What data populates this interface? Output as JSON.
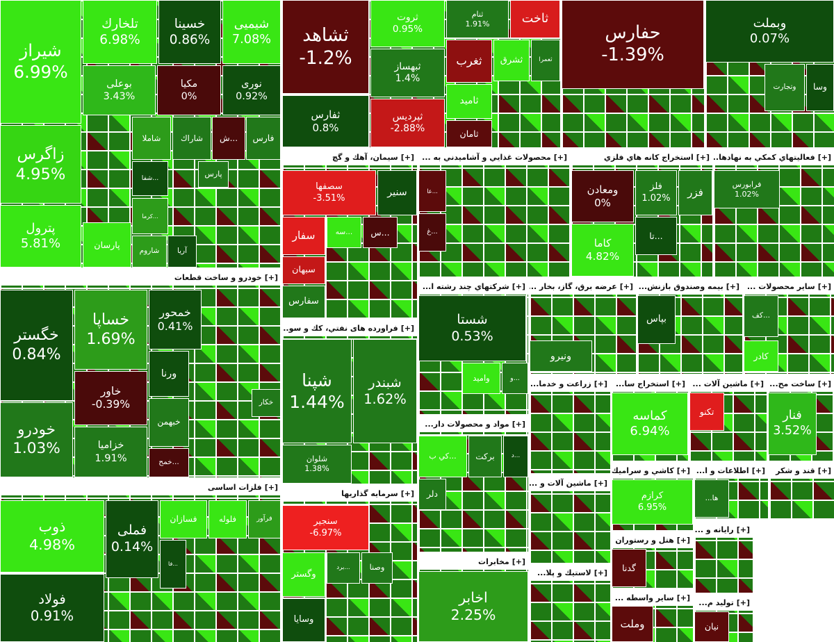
{
  "sectors": [
    {
      "tiles": [
        {
          "label": "شیراز",
          "value": "6.99%",
          "color": "#39e614"
        },
        {
          "label": "زاگرس",
          "value": "4.95%",
          "color": "#36d613"
        },
        {
          "label": "پترول",
          "value": "5.81%",
          "color": "#39e614"
        },
        {
          "label": "تلخارك",
          "value": "6.98%",
          "color": "#39e614"
        },
        {
          "label": "خسینا",
          "value": "0.86%",
          "color": "#0f4d0d"
        },
        {
          "label": "شیمیی",
          "value": "7.08%",
          "color": "#39e614"
        },
        {
          "label": "بوعلی",
          "value": "3.43%",
          "color": "#2fb81a"
        },
        {
          "label": "مکیا",
          "value": "0%",
          "color": "#4a0a0a"
        },
        {
          "label": "نوری",
          "value": "0.92%",
          "color": "#0f4d0d"
        },
        {
          "label": "شاملا",
          "color": "#2d9c1a"
        },
        {
          "label": "شاراك",
          "color": "#21781a"
        },
        {
          "label": "ش...",
          "color": "#4a0a0a"
        },
        {
          "label": "فارس",
          "color": "#21781a"
        },
        {
          "label": "شفا...",
          "color": "#0f4d0d"
        },
        {
          "label": "پارس",
          "color": "#21781a"
        },
        {
          "label": "كرما...",
          "color": "#2d9c1a"
        },
        {
          "label": "پارسان",
          "color": "#39e614"
        },
        {
          "label": "شاروم",
          "color": "#2d9c1a"
        },
        {
          "label": "آریا",
          "color": "#0f4d0d"
        }
      ]
    },
    {
      "title": "خودرو و ساخت قطعات",
      "toggle": "[+]",
      "tiles": [
        {
          "label": "خگستر",
          "value": "0.84%",
          "color": "#0f4d0d"
        },
        {
          "label": "خودرو",
          "value": "1.03%",
          "color": "#21781a"
        },
        {
          "label": "خساپا",
          "value": "1.69%",
          "color": "#2d9c1a"
        },
        {
          "label": "خاور",
          "value": "-0.39%",
          "color": "#4a0a0a"
        },
        {
          "label": "خزامیا",
          "value": "1.91%",
          "color": "#21781a"
        },
        {
          "label": "خمحور",
          "value": "0.41%",
          "color": "#0f4d0d"
        },
        {
          "label": "ورنا",
          "color": "#0f4d0d"
        },
        {
          "label": "خبهمن",
          "color": "#21781a"
        },
        {
          "label": "خمح...",
          "color": "#4a0a0a"
        },
        {
          "label": "خكار",
          "color": "#21781a"
        }
      ]
    },
    {
      "title": "فلزات اساسی",
      "toggle": "[+]",
      "tiles": [
        {
          "label": "ذوب",
          "value": "4.98%",
          "color": "#39e614"
        },
        {
          "label": "فولاد",
          "value": "0.91%",
          "color": "#0f4d0d"
        },
        {
          "label": "فملی",
          "value": "0.14%",
          "color": "#0f4d0d"
        },
        {
          "label": "فرآور",
          "color": "#2d9c1a"
        },
        {
          "label": "فلوله",
          "color": "#39e614"
        },
        {
          "label": "فسازان",
          "color": "#39e614"
        },
        {
          "label": "فا...",
          "color": "#0f4d0d"
        }
      ]
    },
    {
      "tiles": [
        {
          "label": "ثشاهد",
          "value": "-1.2%",
          "color": "#5c0b0b"
        },
        {
          "label": "ثفارس",
          "value": "0.8%",
          "color": "#0f4d0d"
        },
        {
          "label": "ثروت",
          "value": "0.95%",
          "color": "#39e614"
        },
        {
          "label": "ثبهساز",
          "value": "1.4%",
          "color": "#21781a"
        },
        {
          "label": "ثپردیس",
          "value": "-2.88%",
          "color": "#c41818"
        },
        {
          "label": "ثنام",
          "value": "1.91%",
          "color": "#21781a"
        },
        {
          "label": "ثاخت",
          "color": "#d81c1c"
        },
        {
          "label": "ثغرب",
          "color": "#8e1010"
        },
        {
          "label": "ثشرق",
          "color": "#39e614"
        },
        {
          "label": "ثعمرا",
          "color": "#21781a"
        },
        {
          "label": "ثامید",
          "color": "#39e614"
        },
        {
          "label": "ثامان",
          "color": "#5c0b0b"
        }
      ]
    },
    {
      "tiles": [
        {
          "label": "حفارس",
          "value": "-1.39%",
          "color": "#5c0b0b"
        }
      ]
    },
    {
      "tiles": [
        {
          "label": "وبملت",
          "value": "0.07%",
          "color": "#0f4d0d"
        },
        {
          "label": "وتجارت",
          "color": "#21781a"
        },
        {
          "label": "وسا",
          "color": "#0f4d0d"
        }
      ]
    },
    {
      "title": "سیمان، آهك و گچ",
      "toggle": "[+]",
      "tiles": [
        {
          "label": "سصفها",
          "value": "-3.51%",
          "color": "#e01d1d"
        },
        {
          "label": "سنیر",
          "color": "#0f4d0d"
        },
        {
          "label": "سفار",
          "color": "#e01d1d"
        },
        {
          "label": "سبهان",
          "color": "#c41818"
        },
        {
          "label": "سفارس",
          "color": "#21781a"
        },
        {
          "label": "سه...",
          "color": "#39e614"
        },
        {
          "label": "س...",
          "color": "#4a0a0a"
        }
      ]
    },
    {
      "title": "فراورده های نفتي، كك و سو...",
      "toggle": "[+]",
      "tiles": [
        {
          "label": "شپنا",
          "value": "1.44%",
          "color": "#21781a"
        },
        {
          "label": "شبندر",
          "value": "1.62%",
          "color": "#21781a"
        },
        {
          "label": "شلوان",
          "value": "1.38%",
          "color": "#21781a"
        }
      ]
    },
    {
      "title": "سرمايه گذاريها",
      "toggle": "[+]",
      "tiles": [
        {
          "label": "سنجیر",
          "value": "-6.97%",
          "color": "#ee2020"
        },
        {
          "label": "وگستر",
          "color": "#39e614"
        },
        {
          "label": "برد...",
          "color": "#21781a"
        },
        {
          "label": "وصنا",
          "color": "#21781a"
        },
        {
          "label": "وسایا",
          "color": "#0f4d0d"
        }
      ]
    },
    {
      "title": "محصولات غذايي و آشاميدني به ...",
      "toggle": "[+]",
      "tiles": [
        {
          "label": "عا...",
          "color": "#5c0b0b"
        },
        {
          "label": "غ...",
          "color": "#4a0a0a"
        }
      ]
    },
    {
      "title": "شركتهاي چند رشته ا...",
      "toggle": "[+]",
      "tiles": [
        {
          "label": "شستا",
          "value": "0.53%",
          "color": "#0f4d0d"
        },
        {
          "label": "وامید",
          "color": "#39e614"
        },
        {
          "label": "و...",
          "color": "#21781a"
        }
      ]
    },
    {
      "title": "مواد و محصولات دار...",
      "toggle": "[+]",
      "tiles": [
        {
          "label": "كي ب...",
          "color": "#39e614"
        },
        {
          "label": "بركت",
          "color": "#21781a"
        },
        {
          "label": "د...",
          "color": "#0f4d0d"
        },
        {
          "label": "دلر",
          "color": "#21781a"
        }
      ]
    },
    {
      "title": "مخابرات",
      "toggle": "[+]",
      "tiles": [
        {
          "label": "اخابر",
          "value": "2.25%",
          "color": "#2d9c1a"
        }
      ]
    },
    {
      "title": "استخراج كانه هاي فلزي",
      "toggle": "[+]",
      "tiles": [
        {
          "label": "ومعادن",
          "value": "0%",
          "color": "#4a0a0a"
        },
        {
          "label": "فلز",
          "value": "1.02%",
          "color": "#21781a"
        },
        {
          "label": "فزر",
          "color": "#21781a"
        },
        {
          "label": "كاما",
          "value": "4.82%",
          "color": "#39e614"
        },
        {
          "label": "تا...",
          "color": "#0f4d0d"
        }
      ]
    },
    {
      "title": "فعاليتهاي كمكي به نهادها...",
      "toggle": "[+]",
      "tiles": [
        {
          "label": "فرابورس",
          "value": "1.02%",
          "color": "#21781a"
        }
      ]
    },
    {
      "title": "عرضه برق، گاز، بخار ...",
      "toggle": "[+]",
      "tiles": [
        {
          "label": "ونیرو",
          "color": "#21781a"
        }
      ]
    },
    {
      "title": "بیمه وصندوق بازنش...",
      "toggle": "[+]",
      "tiles": [
        {
          "label": "بپاس",
          "color": "#0f4d0d"
        }
      ]
    },
    {
      "title": "ساير محصولات ...",
      "toggle": "[+]",
      "tiles": [
        {
          "label": "كف...",
          "color": "#21781a"
        },
        {
          "label": "كادر",
          "color": "#39e614"
        }
      ]
    },
    {
      "title": "زراعت و خدما...",
      "toggle": "[+]",
      "tiles": []
    },
    {
      "title": "استخراج سا...",
      "toggle": "[+]",
      "tiles": [
        {
          "label": "كماسه",
          "value": "6.94%",
          "color": "#39e614"
        }
      ]
    },
    {
      "title": "ماشين آلات ...",
      "toggle": "[+]",
      "tiles": [
        {
          "label": "تكنو",
          "color": "#e01d1d"
        }
      ]
    },
    {
      "title": "ساخت مح...",
      "toggle": "[+]",
      "tiles": [
        {
          "label": "فنار",
          "value": "3.52%",
          "color": "#2fb81a"
        }
      ]
    },
    {
      "title": "ماشين آلات و ...",
      "toggle": "[+]",
      "tiles": []
    },
    {
      "title": "كاشي و سراميك",
      "toggle": "[+]",
      "tiles": [
        {
          "label": "كرازم",
          "value": "6.95%",
          "color": "#39e614"
        }
      ]
    },
    {
      "title": "اطلاعات و ا...",
      "toggle": "[+]",
      "tiles": [
        {
          "label": "...ها",
          "color": "#21781a"
        }
      ]
    },
    {
      "title": "قند و شكر",
      "toggle": "[+]",
      "tiles": []
    },
    {
      "title": "هتل و رستوران",
      "toggle": "[+]",
      "tiles": [
        {
          "label": "گدنا",
          "color": "#5c0b0b"
        }
      ]
    },
    {
      "title": "لاستيك و پلا...",
      "toggle": "[+]",
      "tiles": []
    },
    {
      "title": "ساير واسطه ...",
      "toggle": "[+]",
      "tiles": [
        {
          "label": "وملت",
          "color": "#5c0b0b"
        }
      ]
    },
    {
      "title": "رايانه و ...",
      "toggle": "[+]",
      "tiles": []
    },
    {
      "title": "تولید م...",
      "toggle": "[+]",
      "tiles": [
        {
          "label": "نیان",
          "color": "#5c0b0b"
        }
      ]
    }
  ]
}
